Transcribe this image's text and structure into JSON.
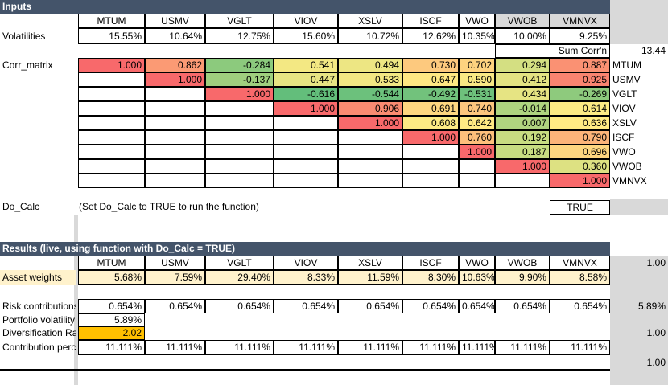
{
  "inputs": {
    "title": "Inputs",
    "tickers": [
      "MTUM",
      "USMV",
      "VGLT",
      "VIOV",
      "XSLV",
      "ISCF",
      "VWO",
      "VWOB",
      "VMNVX"
    ],
    "volatilities_label": "Volatilities",
    "volatilities": [
      "15.55%",
      "10.64%",
      "12.75%",
      "15.60%",
      "10.72%",
      "12.62%",
      "10.35%",
      "10.00%",
      "9.25%"
    ],
    "sum_label": "Sum Corr'n",
    "sum_value": "13.44",
    "corr_label": "Corr_matrix",
    "corr_matrix": [
      [
        "1.000",
        "0.862",
        "-0.284",
        "0.541",
        "0.494",
        "0.730",
        "0.702",
        "0.294",
        "0.887"
      ],
      [
        "1.000",
        "-0.137",
        "0.447",
        "0.533",
        "0.647",
        "0.590",
        "0.412",
        "0.925"
      ],
      [
        "1.000",
        "-0.616",
        "-0.544",
        "-0.492",
        "-0.531",
        "0.434",
        "-0.269"
      ],
      [
        "1.000",
        "0.906",
        "0.691",
        "0.740",
        "-0.014",
        "0.614"
      ],
      [
        "1.000",
        "0.608",
        "0.642",
        "0.007",
        "0.636"
      ],
      [
        "1.000",
        "0.760",
        "0.192",
        "0.790"
      ],
      [
        "1.000",
        "0.187",
        "0.696"
      ],
      [
        "1.000",
        "0.360"
      ],
      [
        "1.000"
      ]
    ],
    "do_calc_label": "Do_Calc",
    "do_calc_note": "(Set Do_Calc to TRUE to run the function)",
    "do_calc_value": "TRUE"
  },
  "results": {
    "title": "Results (live, using function with Do_Calc = TRUE)",
    "tickers": [
      "MTUM",
      "USMV",
      "VGLT",
      "VIOV",
      "XSLV",
      "ISCF",
      "VWO",
      "VWOB",
      "VMNVX"
    ],
    "tickers_side": "1.00",
    "weights_label": "Asset weights",
    "weights": [
      "5.68%",
      "7.59%",
      "29.40%",
      "8.33%",
      "11.59%",
      "8.30%",
      "10.63%",
      "9.90%",
      "8.58%"
    ],
    "risk_label": "Risk contributions",
    "risk": [
      "0.654%",
      "0.654%",
      "0.654%",
      "0.654%",
      "0.654%",
      "0.654%",
      "0.654%",
      "0.654%",
      "0.654%"
    ],
    "risk_side": "5.89%",
    "volatility_label": "Portfolio volatility",
    "volatility": "5.89%",
    "diversification_label": "Diversification Ra",
    "diversification": "2.02",
    "diversification_side": "1.00",
    "contribution_label": "Contribution perce",
    "contribution": [
      "11.111%",
      "11.111%",
      "11.111%",
      "11.111%",
      "11.111%",
      "11.111%",
      "11.111%",
      "11.111%",
      "11.111%"
    ],
    "final_side": "1.00"
  }
}
